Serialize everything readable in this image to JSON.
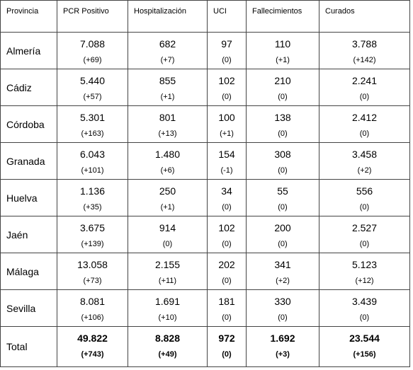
{
  "table": {
    "header": [
      "Provincia",
      "PCR Positivo",
      "Hospitalización",
      "UCI",
      "Fallecimientos",
      "Curados"
    ],
    "rows": [
      {
        "province": "Almería",
        "cells": [
          [
            "7.088",
            "(+69)"
          ],
          [
            "682",
            "(+7)"
          ],
          [
            "97",
            "(0)"
          ],
          [
            "110",
            "(+1)"
          ],
          [
            "3.788",
            "(+142)"
          ]
        ]
      },
      {
        "province": "Cádiz",
        "cells": [
          [
            "5.440",
            "(+57)"
          ],
          [
            "855",
            "(+1)"
          ],
          [
            "102",
            "(0)"
          ],
          [
            "210",
            "(0)"
          ],
          [
            "2.241",
            "(0)"
          ]
        ]
      },
      {
        "province": "Córdoba",
        "cells": [
          [
            "5.301",
            "(+163)"
          ],
          [
            "801",
            "(+13)"
          ],
          [
            "100",
            "(+1)"
          ],
          [
            "138",
            "(0)"
          ],
          [
            "2.412",
            "(0)"
          ]
        ]
      },
      {
        "province": "Granada",
        "cells": [
          [
            "6.043",
            "(+101)"
          ],
          [
            "1.480",
            "(+6)"
          ],
          [
            "154",
            "(-1)"
          ],
          [
            "308",
            "(0)"
          ],
          [
            "3.458",
            "(+2)"
          ]
        ]
      },
      {
        "province": "Huelva",
        "cells": [
          [
            "1.136",
            "(+35)"
          ],
          [
            "250",
            "(+1)"
          ],
          [
            "34",
            "(0)"
          ],
          [
            "55",
            "(0)"
          ],
          [
            "556",
            "(0)"
          ]
        ]
      },
      {
        "province": "Jaén",
        "cells": [
          [
            "3.675",
            "(+139)"
          ],
          [
            "914",
            "(0)"
          ],
          [
            "102",
            "(0)"
          ],
          [
            "200",
            "(0)"
          ],
          [
            "2.527",
            "(0)"
          ]
        ]
      },
      {
        "province": "Málaga",
        "cells": [
          [
            "13.058",
            "(+73)"
          ],
          [
            "2.155",
            "(+11)"
          ],
          [
            "202",
            "(0)"
          ],
          [
            "341",
            "(+2)"
          ],
          [
            "5.123",
            "(+12)"
          ]
        ]
      },
      {
        "province": "Sevilla",
        "cells": [
          [
            "8.081",
            "(+106)"
          ],
          [
            "1.691",
            "(+10)"
          ],
          [
            "181",
            "(0)"
          ],
          [
            "330",
            "(0)"
          ],
          [
            "3.439",
            "(0)"
          ]
        ]
      }
    ],
    "total": {
      "province": "Total",
      "cells": [
        [
          "49.822",
          "(+743)"
        ],
        [
          "8.828",
          "(+49)"
        ],
        [
          "972",
          "(0)"
        ],
        [
          "1.692",
          "(+3)"
        ],
        [
          "23.544",
          "(+156)"
        ]
      ]
    }
  }
}
